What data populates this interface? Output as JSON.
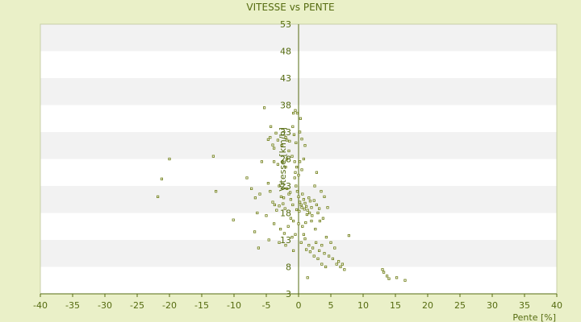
{
  "chart_data": {
    "type": "scatter",
    "title": "VITESSE vs PENTE",
    "xlabel": "Pente [%]",
    "ylabel": "Vitesse [km/h]",
    "xlim": [
      -40,
      40
    ],
    "ylim": [
      3,
      53
    ],
    "x_ticks": [
      -40,
      -35,
      -30,
      -25,
      -20,
      -15,
      -10,
      -5,
      0,
      5,
      10,
      15,
      20,
      25,
      30,
      35,
      40
    ],
    "y_ticks": [
      3,
      8,
      13,
      18,
      23,
      28,
      33,
      38,
      43,
      48,
      53
    ],
    "grid": true,
    "colors": {
      "background": "#eaf0c8",
      "band_light": "#ffffff",
      "band_dark": "#f2f2f2",
      "axis": "#556b10",
      "point": "#6b7a10"
    },
    "series": [
      {
        "points": [
          [
            -5.3,
            37.5
          ],
          [
            -4.7,
            31.6
          ],
          [
            -4.4,
            32.0
          ],
          [
            -4.0,
            30.6
          ],
          [
            -3.8,
            30.0
          ],
          [
            -3.5,
            32.8
          ],
          [
            -3.2,
            31.5
          ],
          [
            -2.0,
            32.0
          ],
          [
            -1.8,
            31.5
          ],
          [
            -1.4,
            31.3
          ],
          [
            -0.7,
            32.5
          ],
          [
            -0.4,
            31.0
          ],
          [
            0.3,
            35.5
          ],
          [
            0.5,
            31.7
          ],
          [
            -0.8,
            36.5
          ],
          [
            -0.5,
            37.0
          ],
          [
            -0.2,
            36.5
          ],
          [
            -4.3,
            34.0
          ],
          [
            -3.8,
            27.5
          ],
          [
            -3.2,
            27.0
          ],
          [
            -2.5,
            27.5
          ],
          [
            -1.8,
            28.0
          ],
          [
            -1.0,
            28.5
          ],
          [
            -0.6,
            27.5
          ],
          [
            -0.3,
            26.5
          ],
          [
            0.2,
            27.5
          ],
          [
            0.8,
            28.0
          ],
          [
            -20.0,
            28.0
          ],
          [
            -21.2,
            24.3
          ],
          [
            -21.8,
            21.0
          ],
          [
            -13.2,
            28.5
          ],
          [
            -12.8,
            22.0
          ],
          [
            -10.1,
            16.7
          ],
          [
            -8.0,
            24.5
          ],
          [
            -7.3,
            22.5
          ],
          [
            -6.7,
            20.8
          ],
          [
            -6.4,
            18.0
          ],
          [
            -5.7,
            27.5
          ],
          [
            -5.0,
            17.5
          ],
          [
            -6.8,
            14.5
          ],
          [
            -6.0,
            21.5
          ],
          [
            -4.7,
            23.5
          ],
          [
            -4.4,
            22.0
          ],
          [
            -4.0,
            20.0
          ],
          [
            -3.7,
            19.5
          ],
          [
            -3.4,
            18.5
          ],
          [
            -3.0,
            23.0
          ],
          [
            -2.7,
            21.0
          ],
          [
            -2.4,
            19.7
          ],
          [
            -2.1,
            18.8
          ],
          [
            -1.8,
            22.5
          ],
          [
            -1.5,
            21.5
          ],
          [
            -1.2,
            20.5
          ],
          [
            -0.9,
            19.5
          ],
          [
            -0.6,
            24.5
          ],
          [
            -0.4,
            23.0
          ],
          [
            -0.2,
            22.0
          ],
          [
            0.0,
            21.0
          ],
          [
            0.2,
            20.0
          ],
          [
            0.4,
            19.5
          ],
          [
            0.6,
            21.5
          ],
          [
            0.8,
            20.5
          ],
          [
            1.0,
            19.8
          ],
          [
            1.2,
            19.2
          ],
          [
            1.4,
            18.5
          ],
          [
            1.6,
            20.8
          ],
          [
            1.8,
            20.2
          ],
          [
            2.0,
            19.0
          ],
          [
            -0.3,
            18.6
          ],
          [
            0.1,
            18.3
          ],
          [
            0.5,
            19.0
          ],
          [
            0.9,
            18.7
          ],
          [
            1.3,
            17.7
          ],
          [
            1.7,
            18.0
          ],
          [
            2.1,
            17.5
          ],
          [
            -1.2,
            17.0
          ],
          [
            -0.8,
            16.5
          ],
          [
            0.0,
            16.0
          ],
          [
            0.6,
            15.5
          ],
          [
            1.1,
            16.2
          ],
          [
            -2.8,
            15.0
          ],
          [
            -2.2,
            14.2
          ],
          [
            -1.6,
            15.5
          ],
          [
            -1.0,
            13.5
          ],
          [
            -0.5,
            14.0
          ],
          [
            -6.2,
            11.5
          ],
          [
            -4.6,
            13.0
          ],
          [
            -3.0,
            12.5
          ],
          [
            -2.0,
            12.0
          ],
          [
            -0.8,
            11.0
          ],
          [
            0.4,
            12.5
          ],
          [
            1.0,
            13.2
          ],
          [
            1.6,
            12.0
          ],
          [
            2.2,
            11.5
          ],
          [
            2.7,
            12.5
          ],
          [
            3.2,
            11.0
          ],
          [
            3.6,
            12.0
          ],
          [
            4.0,
            10.5
          ],
          [
            4.3,
            13.5
          ],
          [
            4.7,
            10.0
          ],
          [
            5.0,
            12.5
          ],
          [
            5.3,
            9.5
          ],
          [
            5.6,
            11.5
          ],
          [
            5.9,
            8.5
          ],
          [
            6.2,
            9.0
          ],
          [
            6.5,
            8.0
          ],
          [
            6.8,
            8.5
          ],
          [
            7.1,
            7.5
          ],
          [
            7.8,
            13.8
          ],
          [
            4.2,
            8.0
          ],
          [
            3.6,
            8.5
          ],
          [
            3.0,
            9.5
          ],
          [
            2.4,
            10.0
          ],
          [
            1.8,
            10.8
          ],
          [
            1.2,
            11.2
          ],
          [
            0.8,
            14.0
          ],
          [
            1.4,
            6.0
          ],
          [
            2.5,
            23.0
          ],
          [
            3.5,
            22.0
          ],
          [
            4.0,
            21.0
          ],
          [
            4.5,
            19.0
          ],
          [
            3.0,
            18.0
          ],
          [
            3.3,
            16.5
          ],
          [
            2.6,
            15.0
          ],
          [
            2.0,
            16.5
          ],
          [
            3.8,
            17.0
          ],
          [
            2.4,
            20.3
          ],
          [
            2.8,
            19.5
          ],
          [
            3.2,
            18.8
          ],
          [
            -1.3,
            21.8
          ],
          [
            -2.3,
            20.8
          ],
          [
            -3.0,
            19.3
          ],
          [
            2.8,
            25.5
          ],
          [
            -2.6,
            30.5
          ],
          [
            1.0,
            30.5
          ],
          [
            0.5,
            26.0
          ],
          [
            -0.5,
            25.5
          ],
          [
            0.0,
            25.0
          ],
          [
            -3.8,
            16.0
          ],
          [
            -2.0,
            26.5
          ],
          [
            -1.5,
            29.5
          ],
          [
            0.2,
            33.0
          ],
          [
            -0.9,
            34.0
          ],
          [
            13.0,
            7.5
          ],
          [
            13.2,
            7.0
          ],
          [
            13.7,
            6.3
          ],
          [
            14.0,
            5.8
          ],
          [
            15.2,
            6.0
          ],
          [
            16.5,
            5.5
          ]
        ]
      }
    ]
  }
}
